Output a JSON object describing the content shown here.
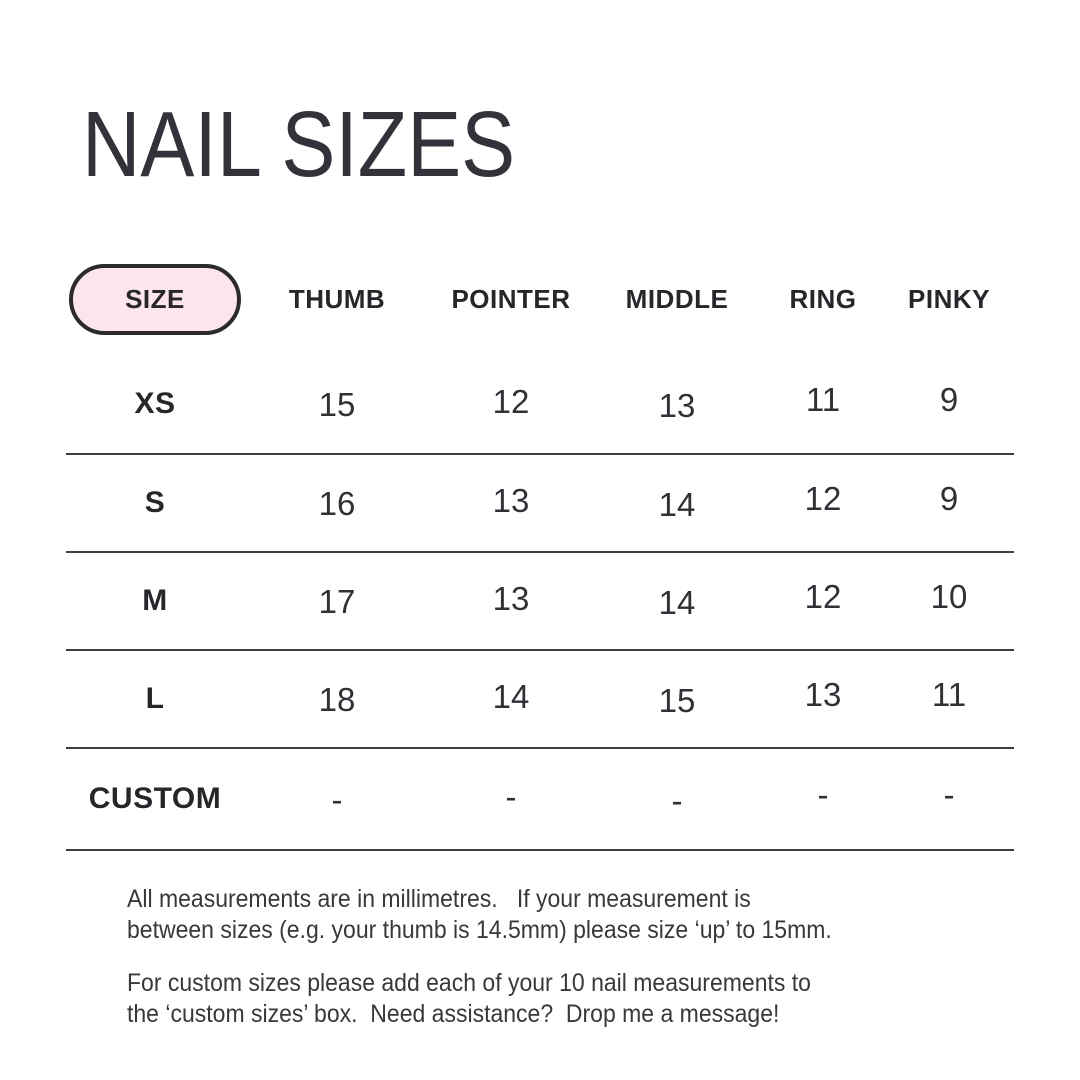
{
  "title": "NAIL SIZES",
  "table": {
    "header": {
      "size_label": "SIZE",
      "columns": [
        "THUMB",
        "POINTER",
        "MIDDLE",
        "RING",
        "PINKY"
      ]
    },
    "rows": [
      {
        "size": "XS",
        "values": [
          "15",
          "12",
          "13",
          "11",
          "9"
        ]
      },
      {
        "size": "S",
        "values": [
          "16",
          "13",
          "14",
          "12",
          "9"
        ]
      },
      {
        "size": "M",
        "values": [
          "17",
          "13",
          "14",
          "12",
          "10"
        ]
      },
      {
        "size": "L",
        "values": [
          "18",
          "14",
          "15",
          "13",
          "11"
        ]
      },
      {
        "size": "CUSTOM",
        "values": [
          "-",
          "-",
          "-",
          "-",
          "-"
        ]
      }
    ]
  },
  "notes": {
    "paragraph1": "All measurements are in millimetres.   If your measurement is\nbetween sizes (e.g. your thumb is 14.5mm) please size ‘up’ to 15mm.",
    "paragraph2": "For custom sizes please add each of your 10 nail measurements to\nthe ‘custom sizes’ box.  Need assistance?  Drop me a message!"
  },
  "colors": {
    "background": "#ffffff",
    "text_dark": "#2e2e33",
    "pill_fill": "#fce5ec",
    "pill_border": "#2b2b2e",
    "divider": "#3e3e42"
  },
  "chart_data": {
    "type": "table",
    "title": "NAIL SIZES",
    "columns": [
      "SIZE",
      "THUMB",
      "POINTER",
      "MIDDLE",
      "RING",
      "PINKY"
    ],
    "rows": [
      [
        "XS",
        15,
        12,
        13,
        11,
        9
      ],
      [
        "S",
        16,
        13,
        14,
        12,
        9
      ],
      [
        "M",
        17,
        13,
        14,
        12,
        10
      ],
      [
        "L",
        18,
        14,
        15,
        13,
        11
      ],
      [
        "CUSTOM",
        "-",
        "-",
        "-",
        "-",
        "-"
      ]
    ],
    "units": "mm",
    "notes": "Measurements in millimetres; if between sizes, size up. Custom sizes via the custom sizes box."
  }
}
